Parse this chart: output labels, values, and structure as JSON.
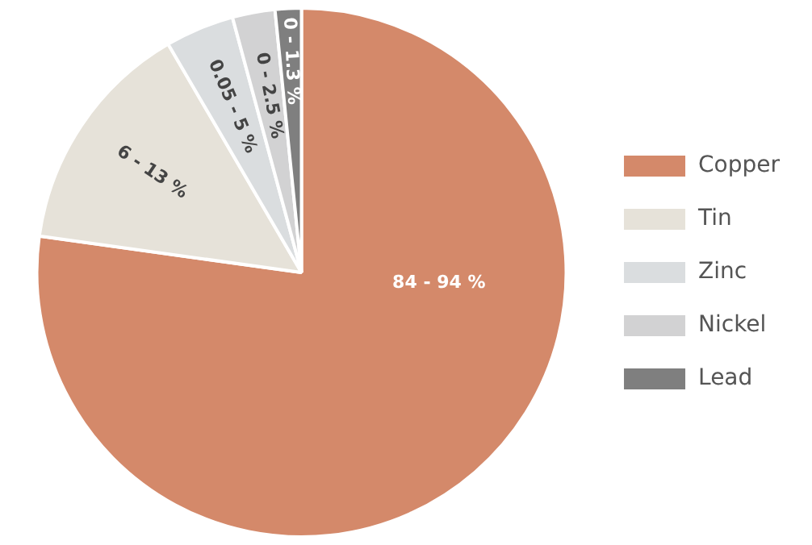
{
  "chart_data": {
    "type": "pie",
    "categories": [
      "Copper",
      "Tin",
      "Zinc",
      "Nickel",
      "Lead"
    ],
    "values": [
      77.2,
      14.4,
      4.2,
      2.6,
      1.6
    ],
    "colors": [
      "#d4896a",
      "#e6e2d9",
      "#dadddf",
      "#d2d2d3",
      "#7f7f7f"
    ],
    "annotations": [
      "84 - 94 %",
      "6 - 13 %",
      "0.05 - 5 %",
      "0 - 2.5 %",
      "0 - 1.3 %"
    ],
    "legend": "right"
  }
}
